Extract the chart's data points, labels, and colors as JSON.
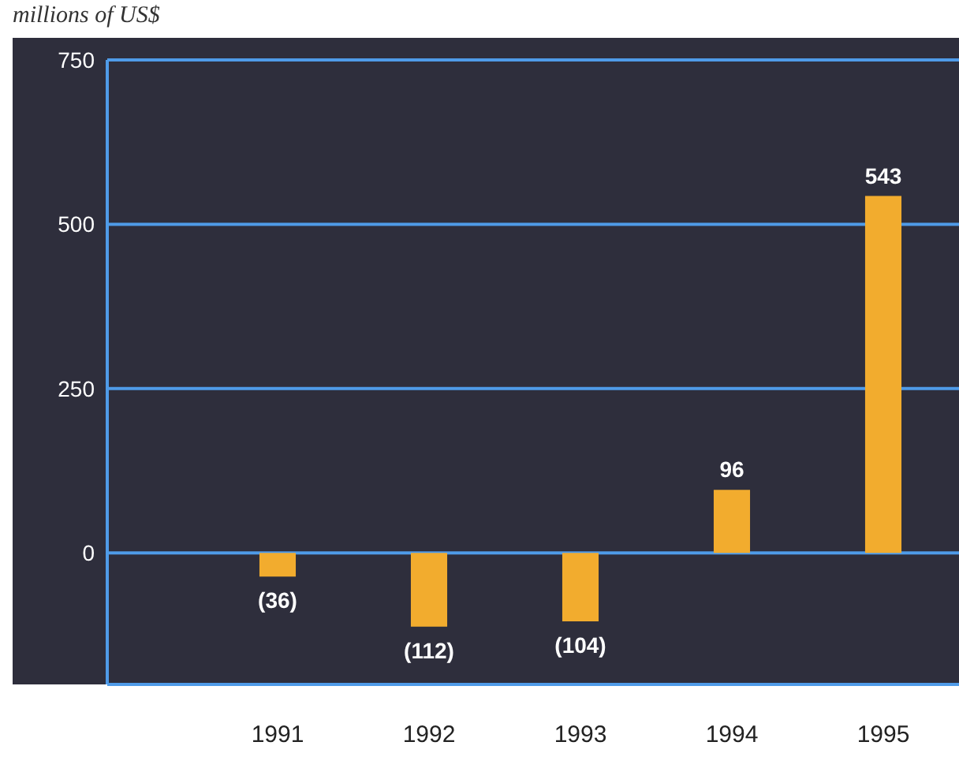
{
  "chart_data": {
    "type": "bar",
    "ylabel": "millions of US$",
    "categories": [
      "1991",
      "1992",
      "1993",
      "1994",
      "1995"
    ],
    "values": [
      -36,
      -112,
      -104,
      96,
      543
    ],
    "value_labels": [
      "(36)",
      "(112)",
      "(104)",
      "96",
      "543"
    ],
    "color": "#f2ac2e",
    "ylim": [
      -200,
      750
    ],
    "yticks": [
      0,
      250,
      500,
      750
    ],
    "grid": "y",
    "legend": false
  }
}
